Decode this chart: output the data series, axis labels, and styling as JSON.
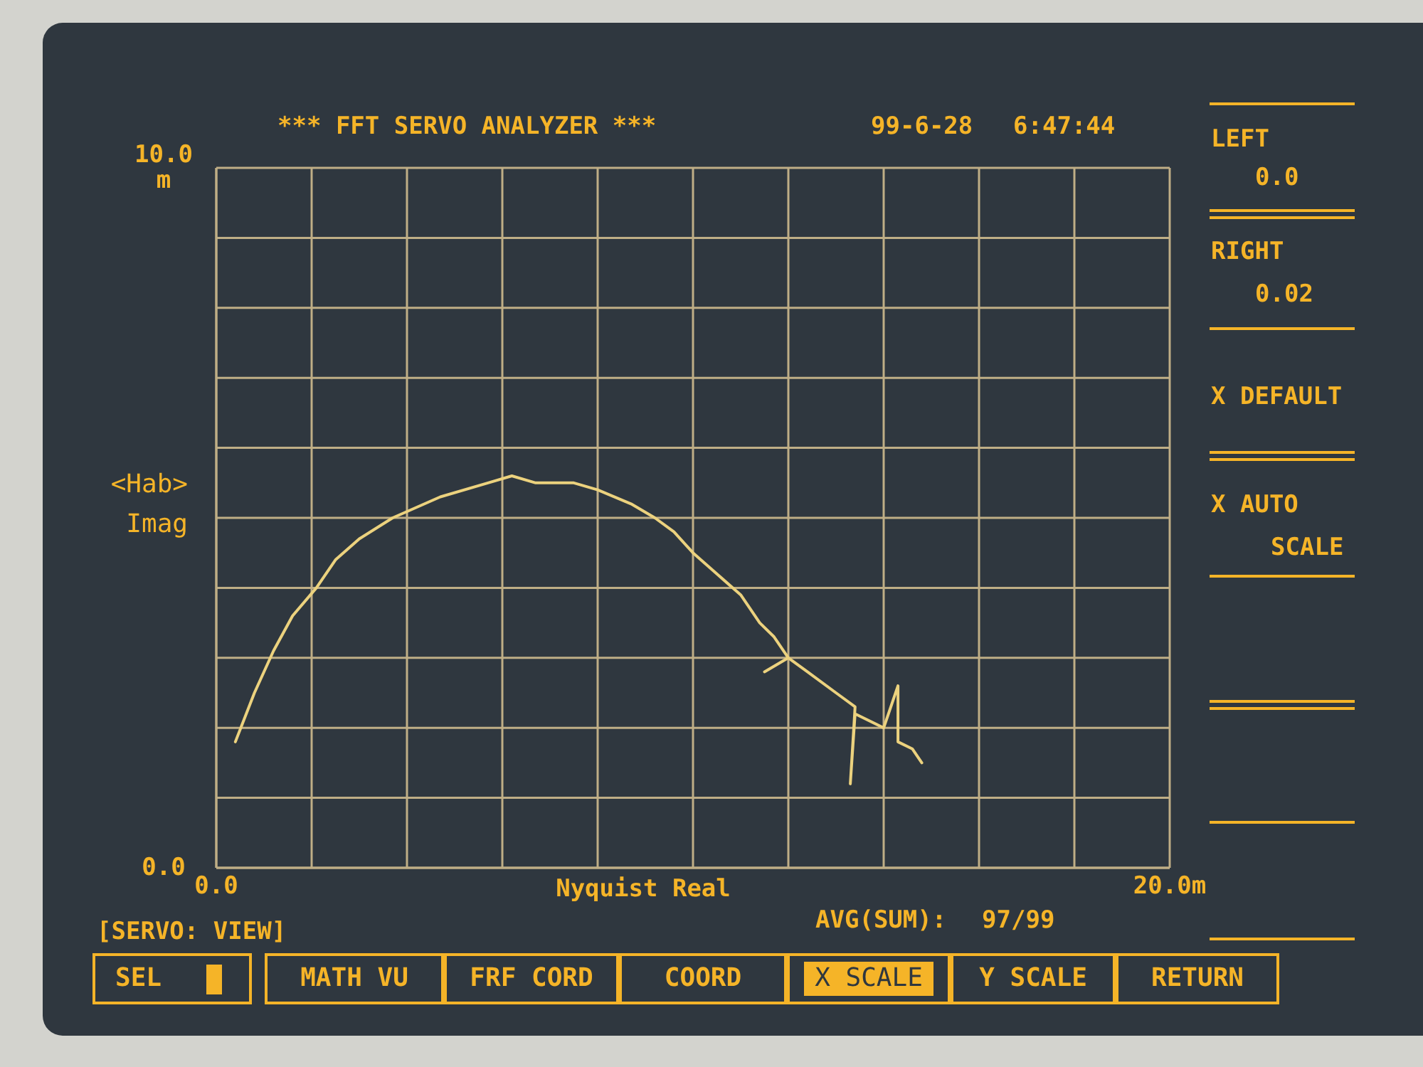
{
  "chart_data": {
    "type": "line",
    "title": "*** FFT SERVO ANALYZER ***",
    "xlabel": "Nyquist Real",
    "ylabel": "<Hab> Imag",
    "x": [
      0.4,
      0.8,
      1.2,
      1.6,
      2.1,
      2.5,
      3.0,
      3.7,
      4.7,
      5.7,
      6.2,
      6.7,
      7.5,
      8.0,
      8.7,
      9.2,
      9.6,
      10.0,
      10.5,
      11.0,
      11.4,
      11.7,
      12.0,
      11.5,
      12.0,
      12.4,
      13.0,
      13.4,
      13.3,
      13.4,
      14.0,
      14.3,
      14.3,
      14.6,
      14.8
    ],
    "values": [
      1.8,
      2.5,
      3.1,
      3.6,
      4.0,
      4.4,
      4.7,
      5.0,
      5.3,
      5.5,
      5.6,
      5.5,
      5.5,
      5.4,
      5.2,
      5.0,
      4.8,
      4.5,
      4.2,
      3.9,
      3.5,
      3.3,
      3.0,
      2.8,
      3.0,
      2.8,
      2.5,
      2.3,
      1.2,
      2.2,
      2.0,
      2.6,
      1.8,
      1.7,
      1.5
    ],
    "color": "#ecd27e",
    "line_style": "solid",
    "xlim": [
      0,
      20
    ],
    "xticks": [
      {
        "value": 0,
        "label": "0.0"
      },
      {
        "value": 2,
        "label": null
      },
      {
        "value": 4,
        "label": null
      },
      {
        "value": 6,
        "label": null
      },
      {
        "value": 8,
        "label": null
      },
      {
        "value": 10,
        "label": null
      },
      {
        "value": 12,
        "label": null
      },
      {
        "value": 14,
        "label": null
      },
      {
        "value": 16,
        "label": null
      },
      {
        "value": 18,
        "label": null
      },
      {
        "value": 20,
        "label": "20.0m"
      }
    ],
    "ylim": [
      0,
      10
    ],
    "yticks": [
      {
        "value": 0,
        "label": "0.0"
      },
      {
        "value": 1,
        "label": null
      },
      {
        "value": 2,
        "label": null
      },
      {
        "value": 3,
        "label": null
      },
      {
        "value": 4,
        "label": null
      },
      {
        "value": 5,
        "label": null
      },
      {
        "value": 6,
        "label": null
      },
      {
        "value": 7,
        "label": null
      },
      {
        "value": 8,
        "label": null
      },
      {
        "value": 9,
        "label": null
      },
      {
        "value": 10,
        "label": "10.0 m"
      }
    ],
    "grid": true,
    "annotations": [
      "99-6-28",
      "6:47:44",
      "[SERVO: VIEW]",
      "AVG(SUM):",
      "97/99",
      "LEFT",
      "0.0",
      "RIGHT",
      "0.02",
      "X DEFAULT",
      "X AUTO SCALE",
      "SEL",
      "MATH VU",
      "FRF CORD",
      "COORD",
      "X SCALE",
      "Y SCALE",
      "RETURN"
    ]
  }
}
